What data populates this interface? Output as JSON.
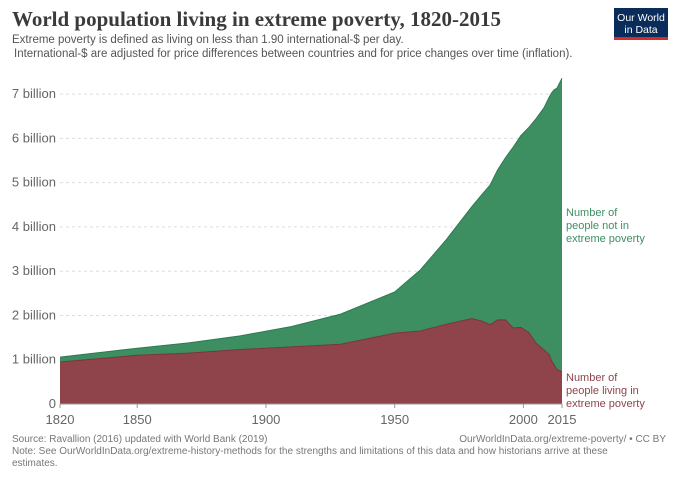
{
  "header": {
    "title": "World population living in extreme poverty, 1820-2015",
    "subtitle_line1": "Extreme poverty is defined as living on less than 1.90 international-$ per day.",
    "subtitle_line2": "International-$ are adjusted for price differences between countries and for price changes over time (inflation).",
    "logo_line1": "Our World",
    "logo_line2": "in Data"
  },
  "footer": {
    "source": "Source: Ravallion (2016) updated with World Bank (2019)",
    "license": "OurWorldInData.org/extreme-poverty/ • CC BY",
    "note": "Note: See OurWorldInData.org/extreme-history-methods for the strengths and limitations of this data and how historians arrive at these estimates."
  },
  "colors": {
    "not_poor": "#3d8f62",
    "poor": "#8f444b",
    "grid": "#dddddd",
    "axis_text": "#666666"
  },
  "chart_data": {
    "type": "area",
    "stacked": true,
    "xlim": [
      1820,
      2015
    ],
    "ylim": [
      0,
      7500000000
    ],
    "x_ticks": [
      1820,
      1850,
      1900,
      1950,
      2000,
      2015
    ],
    "y_ticks": [
      {
        "value": 0,
        "label": "0"
      },
      {
        "value": 1000000000,
        "label": "1 billion"
      },
      {
        "value": 2000000000,
        "label": "2 billion"
      },
      {
        "value": 3000000000,
        "label": "3 billion"
      },
      {
        "value": 4000000000,
        "label": "4 billion"
      },
      {
        "value": 5000000000,
        "label": "5 billion"
      },
      {
        "value": 6000000000,
        "label": "6 billion"
      },
      {
        "value": 7000000000,
        "label": "7 billion"
      }
    ],
    "grid": true,
    "x": [
      1820,
      1850,
      1870,
      1890,
      1910,
      1929,
      1950,
      1960,
      1970,
      1980,
      1984,
      1987,
      1990,
      1993,
      1996,
      1999,
      2002,
      2005,
      2008,
      2010,
      2011,
      2012,
      2013,
      2015
    ],
    "series": [
      {
        "name": "Number of people living in extreme poverty",
        "label_lines": [
          "Number of",
          "people living in",
          "extreme poverty"
        ],
        "values": [
          950000000,
          1100000000,
          1150000000,
          1230000000,
          1290000000,
          1350000000,
          1600000000,
          1650000000,
          1800000000,
          1930000000,
          1870000000,
          1790000000,
          1900000000,
          1900000000,
          1720000000,
          1730000000,
          1620000000,
          1370000000,
          1220000000,
          1120000000,
          970000000,
          880000000,
          780000000,
          730000000
        ]
      },
      {
        "name": "Number of people not in extreme poverty",
        "label_lines": [
          "Number of",
          "people not in",
          "extreme poverty"
        ],
        "values": [
          110000000,
          160000000,
          230000000,
          310000000,
          460000000,
          680000000,
          930000000,
          1380000000,
          1910000000,
          2530000000,
          2870000000,
          3150000000,
          3390000000,
          3660000000,
          4080000000,
          4330000000,
          4620000000,
          5080000000,
          5470000000,
          5810000000,
          6060000000,
          6220000000,
          6350000000,
          6630000000
        ]
      }
    ]
  }
}
